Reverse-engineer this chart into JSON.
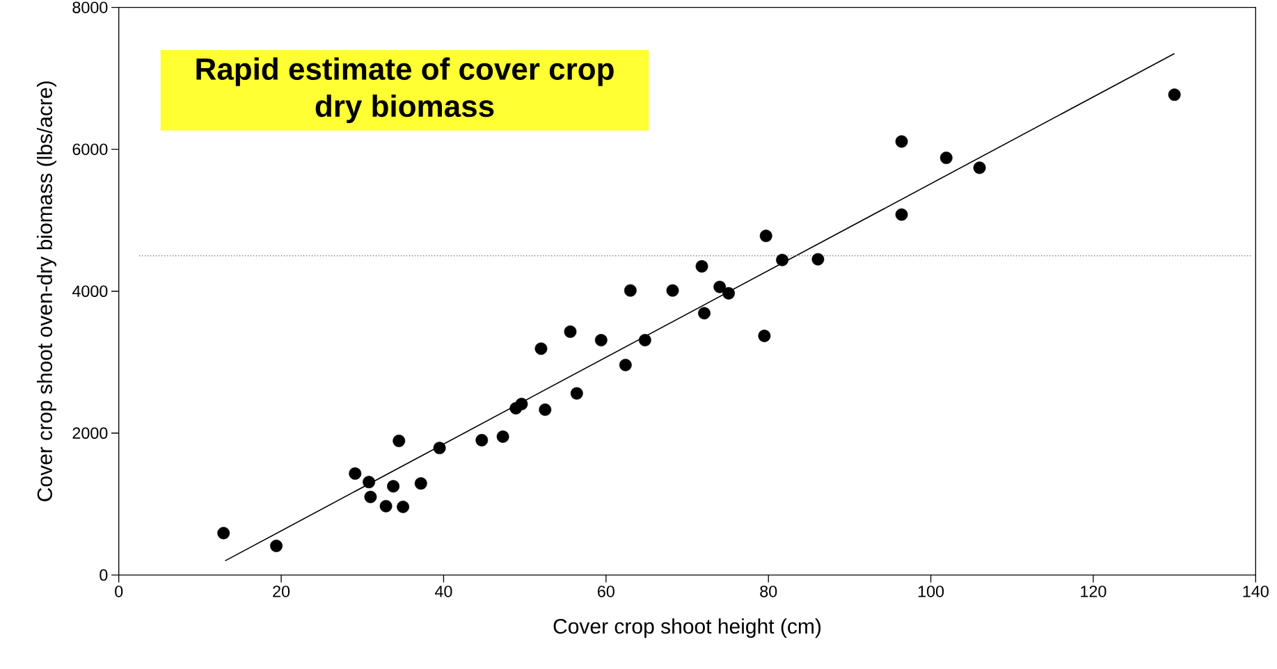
{
  "chart_data": {
    "type": "scatter",
    "title": "Rapid estimate of cover crop dry biomass",
    "xlabel": "Cover crop shoot height (cm)",
    "ylabel": "Cover crop shoot oven-dry biomass (lbs/acre)",
    "xlim": [
      0,
      140
    ],
    "ylim": [
      0,
      8000
    ],
    "xticks": [
      0,
      20,
      40,
      60,
      80,
      100,
      120,
      140
    ],
    "yticks": [
      0,
      2000,
      4000,
      6000,
      8000
    ],
    "grid": false,
    "series": [
      {
        "color": "#000000",
        "marker": "circle",
        "x": [
          12.9,
          19.4,
          29.1,
          30.8,
          31.0,
          32.9,
          33.8,
          34.5,
          35.0,
          37.2,
          39.5,
          44.7,
          47.3,
          48.9,
          49.6,
          52.0,
          52.5,
          55.6,
          56.4,
          59.4,
          62.4,
          63.0,
          64.8,
          68.2,
          71.8,
          72.1,
          74.0,
          75.1,
          79.5,
          79.7,
          81.7,
          86.1,
          96.4,
          96.4,
          101.9,
          106.0,
          130.0
        ],
        "values": [
          590,
          410,
          1430,
          1310,
          1100,
          970,
          1250,
          1890,
          960,
          1290,
          1790,
          1900,
          1950,
          2350,
          2410,
          3190,
          2330,
          3430,
          2560,
          3310,
          2960,
          4010,
          3310,
          4010,
          4350,
          3690,
          4060,
          3970,
          3370,
          4780,
          4440,
          4450,
          6110,
          5080,
          5880,
          5740,
          6770
        ]
      },
      {
        "type": "line",
        "color": "#000000",
        "marker": "none",
        "line_style": "solid",
        "x": [
          13.1,
          130.0
        ],
        "values": [
          200,
          7350
        ]
      }
    ],
    "ref_lines": [
      {
        "axis": "y",
        "value": 4500,
        "color": "#808080",
        "line_style": "dotted"
      }
    ]
  }
}
